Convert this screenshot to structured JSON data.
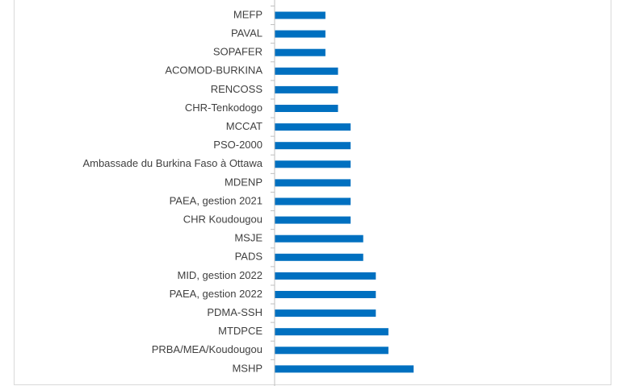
{
  "chart_data": {
    "type": "bar",
    "orientation": "horizontal",
    "title": "",
    "xlabel": "",
    "ylabel": "",
    "bar_color": "#0070c0",
    "axis_color": "#bfbfbf",
    "label_color": "#404040",
    "grid": false,
    "x_axis_visible": false,
    "xlim": [
      0,
      12
    ],
    "categories": [
      "MEFP",
      "PAVAL",
      "SOPAFER",
      "ACOMOD-BURKINA",
      "RENCOSS",
      "CHR-Tenkodogo",
      "MCCAT",
      "PSO-2000",
      "Ambassade du Burkina Faso à Ottawa",
      "MDENP",
      "PAEA, gestion 2021",
      "CHR Koudougou",
      "MSJE",
      "PADS",
      "MID, gestion 2022",
      "PAEA, gestion 2022",
      "PDMA-SSH",
      "MTDPCE",
      "PRBA/MEA/Koudougou",
      "MSHP"
    ],
    "values": [
      4,
      4,
      4,
      5,
      5,
      5,
      6,
      6,
      6,
      6,
      6,
      6,
      7,
      7,
      8,
      8,
      8,
      9,
      9,
      11
    ]
  }
}
